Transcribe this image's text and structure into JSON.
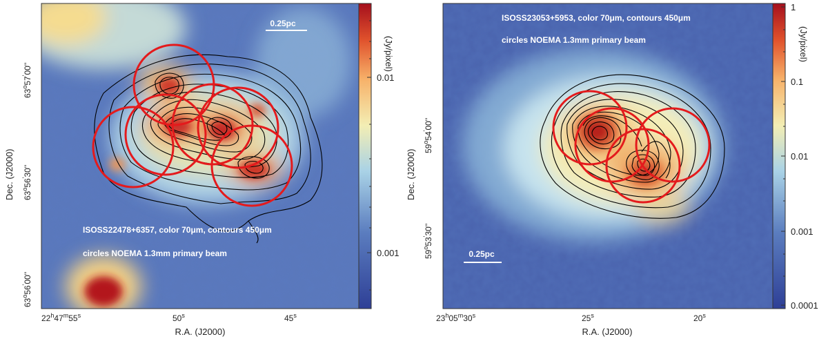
{
  "panels": [
    {
      "id": "left",
      "caption_line1": "ISOSS22478+6357, color 70μm, contours 450μm",
      "caption_line2": "circles NOEMA 1.3mm primary beam",
      "scalebar_label": "0.25pc",
      "colorbar_unit": "(Jy/pixel)",
      "colorbar_ticks": [
        "0.01",
        "0.001"
      ],
      "ylabel": "Dec. (J2000)",
      "xlabel": "R.A. (J2000)",
      "yticks": [
        {
          "deg": "63",
          "min": "57",
          "sec": "00''"
        },
        {
          "deg": "63",
          "min": "56",
          "sec": "30''"
        },
        {
          "deg": "63",
          "min": "56",
          "sec": "00''"
        }
      ],
      "xticks": [
        {
          "main": "22",
          "h": "h",
          "mid": "47",
          "m": "m",
          "sec": "55",
          "s": "s"
        },
        {
          "main": "",
          "h": "",
          "mid": "",
          "m": "",
          "sec": "50",
          "s": "s"
        },
        {
          "main": "",
          "h": "",
          "mid": "",
          "m": "",
          "sec": "45",
          "s": "s"
        }
      ]
    },
    {
      "id": "right",
      "caption_line1": "ISOSS23053+5953, color 70μm, contours 450μm",
      "caption_line2": "circles NOEMA 1.3mm primary beam",
      "scalebar_label": "0.25pc",
      "colorbar_unit": "(Jy/pixel)",
      "colorbar_ticks": [
        "1",
        "0.1",
        "0.01",
        "0.001",
        "0.0001"
      ],
      "ylabel": "Dec. (J2000)",
      "xlabel": "R.A. (J2000)",
      "yticks": [
        {
          "deg": "59",
          "min": "54",
          "sec": "00''"
        },
        {
          "deg": "59",
          "min": "53",
          "sec": "30''"
        }
      ],
      "xticks": [
        {
          "main": "23",
          "h": "h",
          "mid": "05",
          "m": "m",
          "sec": "30",
          "s": "s"
        },
        {
          "main": "",
          "h": "",
          "mid": "",
          "m": "",
          "sec": "25",
          "s": "s"
        },
        {
          "main": "",
          "h": "",
          "mid": "",
          "m": "",
          "sec": "20",
          "s": "s"
        }
      ]
    }
  ],
  "colors": {
    "low": "#3a4fa0",
    "mid": "#b9dcec",
    "yellow": "#f5e9a6",
    "high": "#b3141c",
    "circle": "#e41a1c",
    "contour": "#000000"
  }
}
